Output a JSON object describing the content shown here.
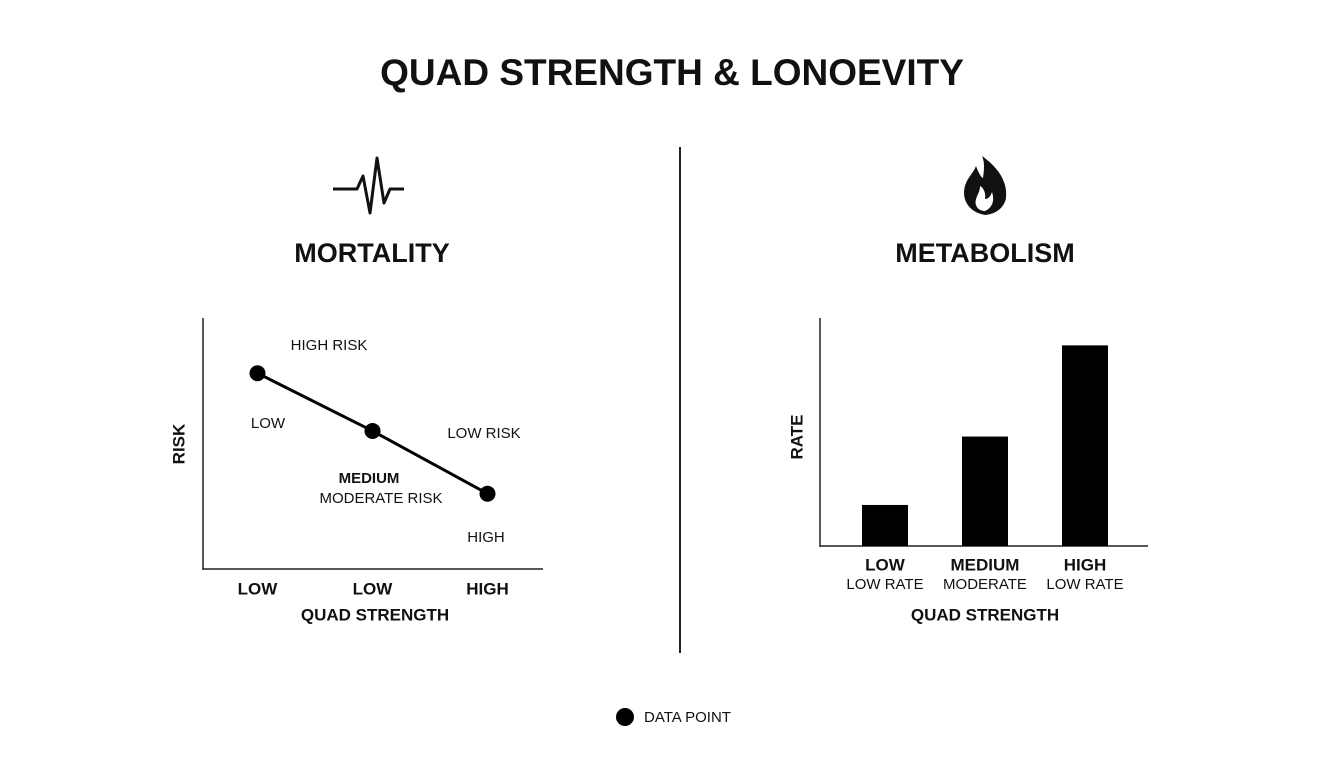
{
  "title": "QUAD STRENGTH & LONOEVITY",
  "chart_data": [
    {
      "type": "line",
      "title": "MORTALITY",
      "x_label": "QUAD STRENGTH",
      "y_label": "RISK",
      "categories": [
        "LOW",
        "LOW",
        "HIGH"
      ],
      "series": [
        {
          "name": "DATA POINT",
          "color": "#000000",
          "values": [
            78,
            55,
            30
          ]
        }
      ],
      "ylim": [
        0,
        100
      ],
      "annotations": [
        "HIGH RISK",
        "LOW",
        "LOW RISK",
        "MEDIUM",
        "MODERATE RISK",
        "HIGH"
      ]
    },
    {
      "type": "bar",
      "title": "METABOLISM",
      "x_label": "QUAD STRENGTH",
      "y_label": "RATE",
      "categories": [
        "LOW",
        "MEDIUM",
        "HIGH"
      ],
      "category_sublabels": [
        "LOW RATE",
        "MODERATE",
        "LOW RATE"
      ],
      "values": [
        18,
        48,
        88
      ],
      "color": "#000000",
      "ylim": [
        0,
        100
      ]
    }
  ]
}
